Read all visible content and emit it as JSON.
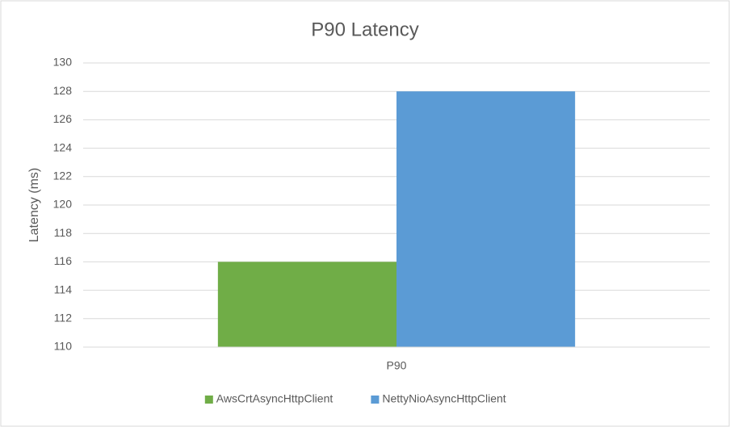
{
  "chart_data": {
    "type": "bar",
    "title": "P90 Latency",
    "y_label": "Latency (ms)",
    "categories": [
      "P90"
    ],
    "series": [
      {
        "name": "AwsCrtAsyncHttpClient",
        "color": "#70ad47",
        "values": [
          116
        ]
      },
      {
        "name": "NettyNioAsyncHttpClient",
        "color": "#5b9bd5",
        "values": [
          128
        ]
      }
    ],
    "ylim": [
      110,
      130
    ],
    "yticks": [
      110,
      112,
      114,
      116,
      118,
      120,
      122,
      124,
      126,
      128,
      130
    ],
    "grid": true,
    "legend": "bottom"
  }
}
